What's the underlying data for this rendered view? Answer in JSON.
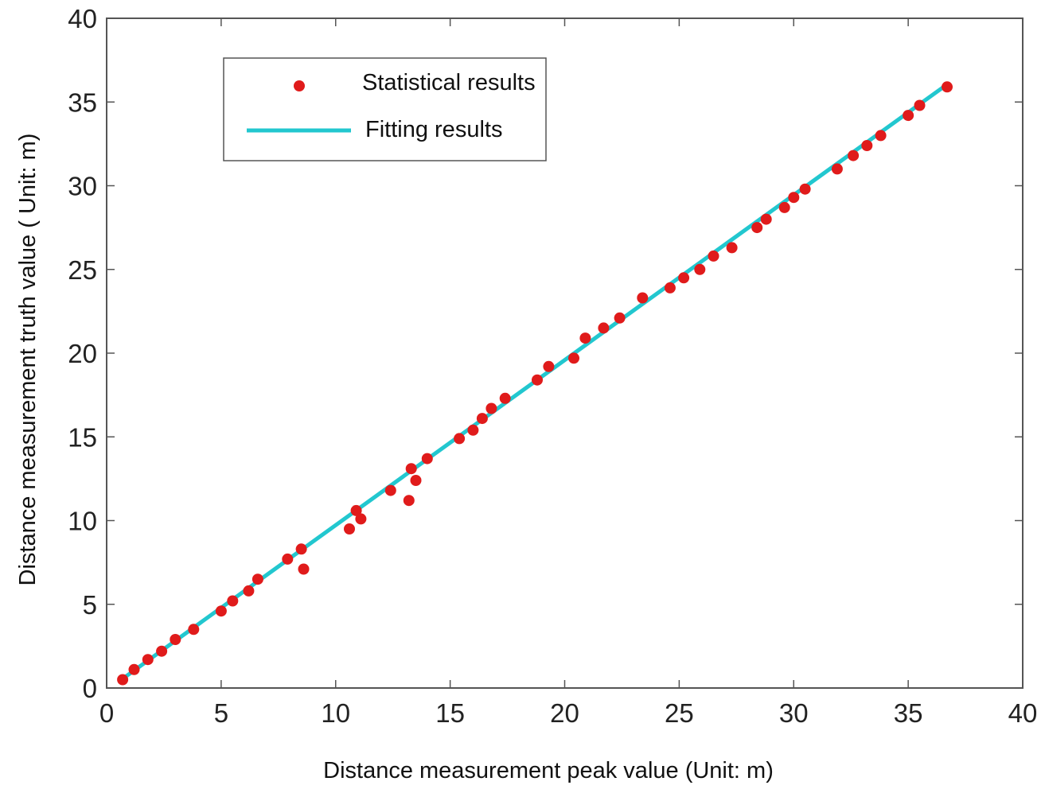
{
  "chart_data": {
    "type": "scatter",
    "xlabel": "Distance measurement peak value (Unit: m)",
    "ylabel": "Distance measurement truth value ( Unit: m)",
    "xlim": [
      0,
      40
    ],
    "ylim": [
      0,
      40
    ],
    "xticks": [
      "0",
      "5",
      "10",
      "15",
      "20",
      "25",
      "30",
      "35",
      "40"
    ],
    "yticks": [
      "0",
      "5",
      "10",
      "15",
      "20",
      "25",
      "30",
      "35",
      "40"
    ],
    "grid": false,
    "legend_position": "top-left",
    "colors": {
      "points": "#e01b1b",
      "fit": "#22c7cf",
      "axis": "#555555"
    },
    "series": [
      {
        "name": "Statistical results",
        "kind": "scatter",
        "points": [
          [
            0.7,
            0.5
          ],
          [
            1.2,
            1.1
          ],
          [
            1.8,
            1.7
          ],
          [
            2.4,
            2.2
          ],
          [
            3.0,
            2.9
          ],
          [
            3.8,
            3.5
          ],
          [
            5.0,
            4.6
          ],
          [
            5.5,
            5.2
          ],
          [
            6.2,
            5.8
          ],
          [
            6.6,
            6.5
          ],
          [
            7.9,
            7.7
          ],
          [
            8.5,
            8.3
          ],
          [
            8.6,
            7.1
          ],
          [
            10.6,
            9.5
          ],
          [
            10.9,
            10.6
          ],
          [
            11.1,
            10.1
          ],
          [
            12.4,
            11.8
          ],
          [
            13.2,
            11.2
          ],
          [
            13.3,
            13.1
          ],
          [
            13.5,
            12.4
          ],
          [
            14.0,
            13.7
          ],
          [
            15.4,
            14.9
          ],
          [
            16.0,
            15.4
          ],
          [
            16.4,
            16.1
          ],
          [
            16.8,
            16.7
          ],
          [
            17.4,
            17.3
          ],
          [
            18.8,
            18.4
          ],
          [
            19.3,
            19.2
          ],
          [
            20.4,
            19.7
          ],
          [
            20.9,
            20.9
          ],
          [
            21.7,
            21.5
          ],
          [
            22.4,
            22.1
          ],
          [
            23.4,
            23.3
          ],
          [
            24.6,
            23.9
          ],
          [
            25.2,
            24.5
          ],
          [
            25.9,
            25.0
          ],
          [
            26.5,
            25.8
          ],
          [
            27.3,
            26.3
          ],
          [
            28.4,
            27.5
          ],
          [
            28.8,
            28.0
          ],
          [
            29.6,
            28.7
          ],
          [
            30.0,
            29.3
          ],
          [
            30.5,
            29.8
          ],
          [
            31.9,
            31.0
          ],
          [
            32.6,
            31.8
          ],
          [
            33.2,
            32.4
          ],
          [
            33.8,
            33.0
          ],
          [
            35.0,
            34.2
          ],
          [
            35.5,
            34.8
          ],
          [
            36.7,
            35.9
          ]
        ]
      },
      {
        "name": "Fitting results",
        "kind": "line",
        "points": [
          [
            0.7,
            0.55
          ],
          [
            36.7,
            36.05
          ]
        ]
      }
    ]
  }
}
